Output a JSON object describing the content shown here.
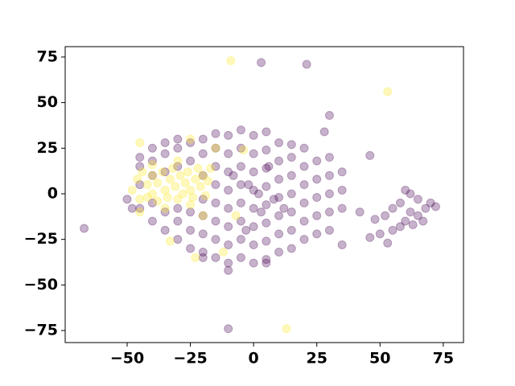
{
  "chart_data": {
    "type": "scatter",
    "xlim": [
      -74.5,
      83
    ],
    "ylim": [
      -81.6,
      80.7
    ],
    "xticks": [
      {
        "value": -50,
        "label": "−50"
      },
      {
        "value": -25,
        "label": "−25"
      },
      0,
      25,
      50,
      75
    ],
    "yticks": [
      {
        "value": -75,
        "label": "−75"
      },
      {
        "value": -50,
        "label": "−50"
      },
      {
        "value": -25,
        "label": "−25"
      },
      0,
      25,
      50,
      75
    ],
    "opacity": 0.3,
    "series": [
      {
        "color": "#440154",
        "x": [
          -45,
          -45,
          -45,
          -45,
          -40,
          -40,
          -40,
          -40,
          -40,
          -35,
          -35,
          -35,
          -35,
          -35,
          -30,
          -30,
          -30,
          -30,
          -30,
          -30,
          -25,
          -25,
          -25,
          -25,
          -25,
          -20,
          -20,
          -20,
          -20,
          -20,
          -20,
          -20,
          -15,
          -15,
          -15,
          -15,
          -15,
          -15,
          -15,
          -15,
          -10,
          -10,
          -10,
          -10,
          -10,
          -10,
          -10,
          -10,
          -5,
          -5,
          -5,
          -5,
          -5,
          -5,
          -5,
          -5,
          0,
          0,
          0,
          0,
          0,
          0,
          0,
          0,
          5,
          5,
          5,
          5,
          5,
          5,
          5,
          5,
          10,
          10,
          10,
          10,
          10,
          10,
          10,
          15,
          15,
          15,
          15,
          15,
          15,
          15,
          20,
          20,
          20,
          20,
          20,
          20,
          25,
          25,
          25,
          25,
          25,
          30,
          30,
          30,
          30,
          30,
          35,
          35,
          35,
          2,
          -2,
          8,
          -8,
          12,
          3,
          -3,
          6,
          48,
          52,
          55,
          58,
          60,
          62,
          62,
          65,
          65,
          68,
          70,
          72,
          58,
          63,
          67,
          55,
          60,
          50,
          -67,
          3,
          21,
          -10,
          30,
          46,
          53,
          -10,
          46,
          42,
          -48,
          -50,
          5,
          -20,
          35,
          28
        ],
        "values": [
          -8,
          5,
          15,
          20,
          -15,
          -5,
          10,
          18,
          25,
          -20,
          -10,
          12,
          22,
          28,
          -25,
          -15,
          -8,
          15,
          25,
          30,
          -30,
          -20,
          -10,
          18,
          28,
          -32,
          -22,
          -12,
          -3,
          10,
          22,
          30,
          -35,
          -25,
          -15,
          -5,
          5,
          15,
          25,
          33,
          -38,
          -28,
          -18,
          -8,
          2,
          12,
          22,
          32,
          -35,
          -25,
          -15,
          -5,
          5,
          15,
          25,
          35,
          -38,
          -28,
          -18,
          -8,
          2,
          12,
          22,
          32,
          -36,
          -26,
          -16,
          -6,
          4,
          14,
          24,
          34,
          -32,
          -22,
          -12,
          -2,
          8,
          18,
          28,
          -30,
          -20,
          -10,
          0,
          10,
          20,
          27,
          -25,
          -15,
          -5,
          5,
          15,
          25,
          -22,
          -12,
          -2,
          8,
          18,
          -20,
          -10,
          0,
          10,
          20,
          -8,
          2,
          12,
          0,
          5,
          -3,
          10,
          -8,
          -10,
          -20,
          15,
          -14,
          -12,
          -8,
          -5,
          -15,
          -10,
          0,
          -3,
          -12,
          -8,
          -5,
          -7,
          -18,
          -17,
          -15,
          -20,
          2,
          -22,
          -19,
          72,
          71,
          -74,
          43,
          21,
          -27,
          -42,
          -24,
          -10,
          -8,
          -3,
          -38,
          -35,
          -28,
          34
        ]
      },
      {
        "color": "#fde725",
        "x": [
          -48,
          -46,
          -45,
          -44,
          -42,
          -42,
          -40,
          -40,
          -38,
          -38,
          -36,
          -35,
          -34,
          -33,
          -32,
          -31,
          -30,
          -29,
          -28,
          -27,
          -26,
          -25,
          -24,
          -23,
          -22,
          -21,
          -20,
          -19,
          -18,
          -17,
          -30,
          -40,
          -35,
          -25,
          -45,
          -20,
          -15,
          -45,
          -25,
          -33,
          -12,
          -9,
          53,
          13,
          -23,
          -7,
          -4
        ],
        "values": [
          2,
          8,
          -3,
          12,
          5,
          -2,
          10,
          0,
          6,
          -4,
          12,
          2,
          -2,
          8,
          14,
          4,
          -3,
          10,
          0,
          6,
          12,
          2,
          -2,
          8,
          14,
          4,
          10,
          -1,
          7,
          14,
          18,
          16,
          -8,
          -6,
          -10,
          -12,
          25,
          28,
          30,
          -26,
          -32,
          73,
          56,
          -74,
          -35,
          -12,
          24
        ]
      }
    ]
  }
}
